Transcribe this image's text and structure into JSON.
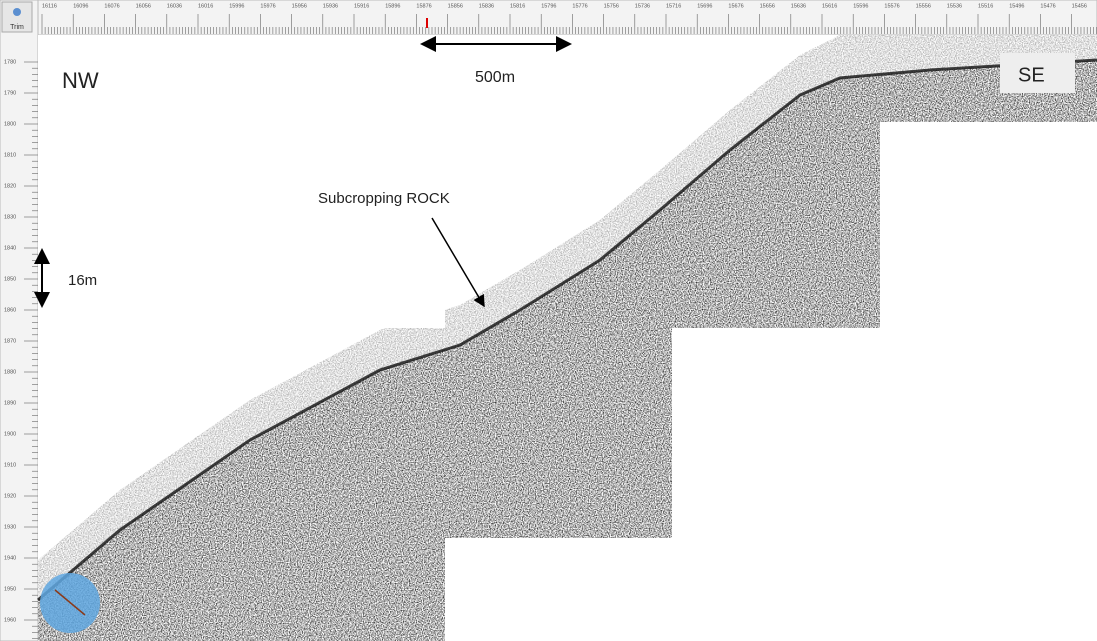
{
  "toolbar": {
    "button": "Trim"
  },
  "ruler": {
    "top_ticks": [
      16116,
      16096,
      16076,
      16056,
      16036,
      16016,
      15996,
      15976,
      15956,
      15936,
      15916,
      15896,
      15876,
      15856,
      15836,
      15816,
      15796,
      15776,
      15756,
      15736,
      15716,
      15696,
      15676,
      15656,
      15636,
      15616,
      15596,
      15576,
      15556,
      15536,
      15516,
      15496,
      15476,
      15456
    ],
    "left_ticks": [
      1780,
      1790,
      1800,
      1810,
      1820,
      1830,
      1840,
      1850,
      1860,
      1870,
      1880,
      1890,
      1900,
      1910,
      1920,
      1930,
      1940,
      1950,
      1960
    ]
  },
  "annotations": {
    "left_direction": "NW",
    "right_direction": "SE",
    "horizontal_scale": "500m",
    "vertical_scale": "16m",
    "feature": "Subcropping ROCK"
  }
}
